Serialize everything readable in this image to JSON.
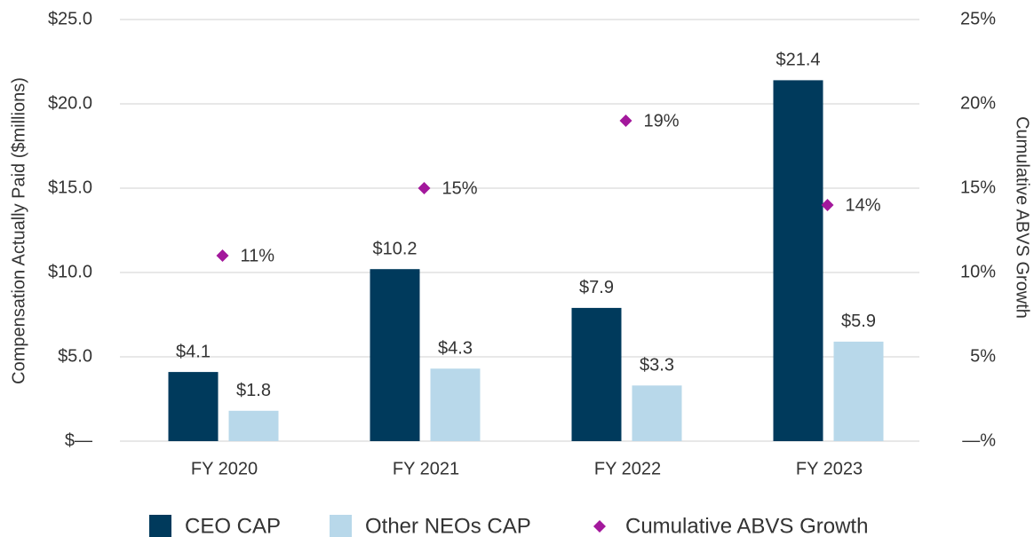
{
  "chart_data": {
    "type": "bar",
    "ylabel": "Compensation Actually Paid ($millions)",
    "y2label": "Cumulative ABVS Growth",
    "categories": [
      "FY 2020",
      "FY 2021",
      "FY 2022",
      "FY 2023"
    ],
    "series": [
      {
        "name": "CEO CAP",
        "color": "#003a5c",
        "type": "bar",
        "values": [
          4.1,
          10.2,
          7.9,
          21.4
        ],
        "value_labels": [
          "$4.1",
          "$10.2",
          "$7.9",
          "$21.4"
        ]
      },
      {
        "name": "Other NEOs CAP",
        "color": "#b8d8ea",
        "type": "bar",
        "values": [
          1.8,
          4.3,
          3.3,
          5.9
        ],
        "value_labels": [
          "$1.8",
          "$4.3",
          "$3.3",
          "$5.9"
        ]
      },
      {
        "name": "Cumulative ABVS Growth",
        "color": "#a3189c",
        "type": "scatter",
        "axis": "y2",
        "values": [
          11,
          15,
          19,
          14
        ],
        "value_labels": [
          "11%",
          "15%",
          "19%",
          "14%"
        ]
      }
    ],
    "ylim": [
      0,
      25
    ],
    "yticks": [
      {
        "value": 0,
        "label": "$—"
      },
      {
        "value": 5,
        "label": "$5.0"
      },
      {
        "value": 10,
        "label": "$10.0"
      },
      {
        "value": 15,
        "label": "$15.0"
      },
      {
        "value": 20,
        "label": "$20.0"
      },
      {
        "value": 25,
        "label": "$25.0"
      }
    ],
    "y2lim": [
      0,
      25
    ],
    "y2ticks": [
      {
        "value": 0,
        "label": "—%"
      },
      {
        "value": 5,
        "label": "5%"
      },
      {
        "value": 10,
        "label": "10%"
      },
      {
        "value": 15,
        "label": "15%"
      },
      {
        "value": 20,
        "label": "20%"
      },
      {
        "value": 25,
        "label": "25%"
      }
    ],
    "grid": true,
    "legend": "bottom"
  }
}
